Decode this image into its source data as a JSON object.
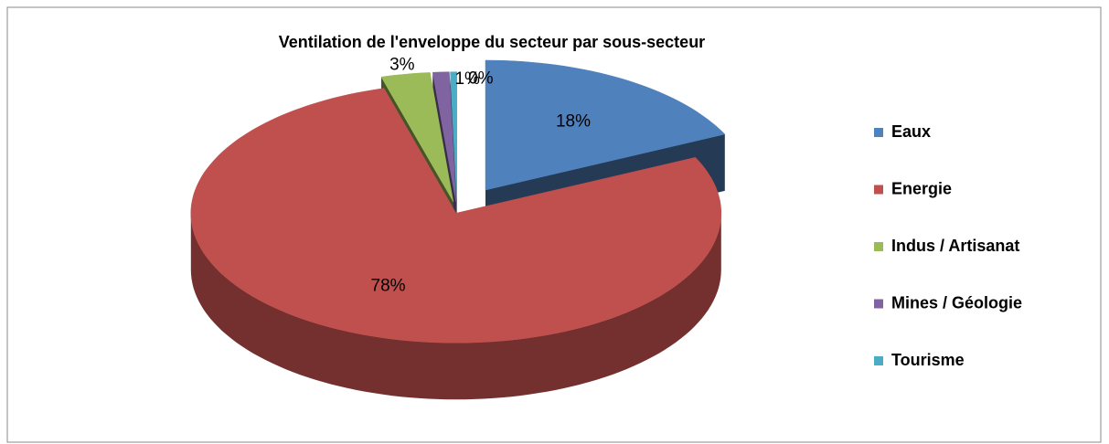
{
  "chart_data": {
    "type": "pie",
    "title": "Ventilation de l'enveloppe du secteur par sous-secteur",
    "categories": [
      "Eaux",
      "Energie",
      "Indus / Artisanat",
      "Mines / Géologie",
      "Tourisme"
    ],
    "values": [
      18,
      78,
      3,
      1,
      0.4
    ],
    "value_labels": [
      "18%",
      "78%",
      "3%",
      "1%",
      "0%"
    ],
    "colors": [
      "#4f81bd",
      "#c0504d",
      "#9bbb59",
      "#8064a2",
      "#4bacc6"
    ],
    "legend": "right"
  }
}
